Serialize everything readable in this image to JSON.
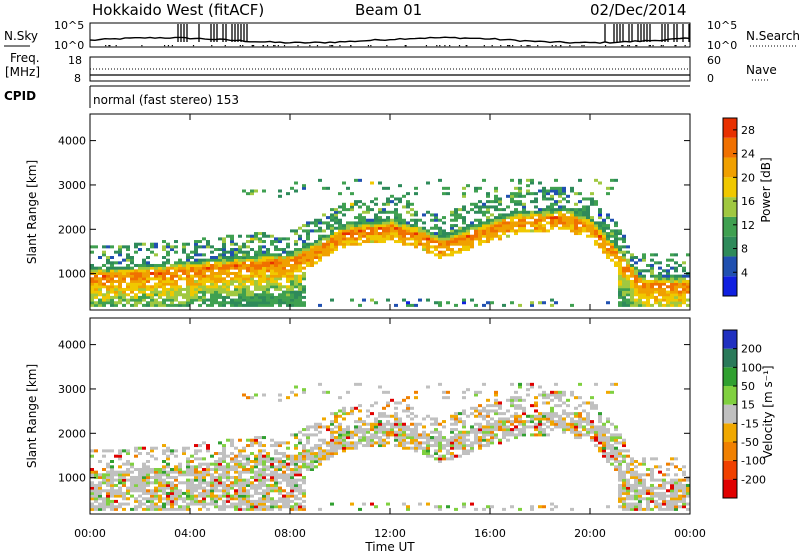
{
  "header": {
    "title": "Hokkaido West (fitACF)",
    "beam": "Beam 01",
    "date": "02/Dec/2014"
  },
  "strip_labels": {
    "nsky": "N.Sky",
    "nsearch": "N.Search",
    "freq_top": "Freq.",
    "freq_unit": "[MHz]",
    "nave": "Nave",
    "cpid": "CPID"
  },
  "noise_panel": {
    "left_ticks": [
      "10^5",
      "10^0"
    ],
    "right_ticks": [
      "10^5",
      "10^0"
    ]
  },
  "freq_panel": {
    "left_ticks": [
      "18",
      "8"
    ],
    "right_ticks": [
      "60",
      "0"
    ]
  },
  "cpid_text": "normal (fast stereo) 153",
  "chart_data": [
    {
      "type": "heatmap",
      "panel": "power",
      "ylabel": "Slant Range [km]",
      "y_ticks": [
        "1000",
        "2000",
        "3000",
        "4000"
      ],
      "ylim": [
        180,
        4600
      ],
      "colorbar": {
        "label": "Power [dB]",
        "ticks": [
          "4",
          "8",
          "12",
          "16",
          "20",
          "24",
          "28"
        ],
        "range": [
          0,
          30
        ]
      },
      "scatter_band": {
        "x_hours": [
          0,
          1,
          2,
          3,
          4,
          5,
          6,
          7,
          8,
          9,
          10,
          11,
          12,
          13,
          14,
          15,
          16,
          17,
          18,
          19,
          20,
          21,
          22,
          23,
          24
        ],
        "center_km": [
          900,
          900,
          950,
          1000,
          1050,
          1100,
          1150,
          1200,
          1250,
          1500,
          1850,
          1950,
          2000,
          1850,
          1600,
          1800,
          2000,
          2150,
          2200,
          2250,
          2000,
          1400,
          700,
          700,
          700
        ]
      }
    },
    {
      "type": "heatmap",
      "panel": "velocity",
      "ylabel": "Slant Range [km]",
      "y_ticks": [
        "1000",
        "2000",
        "3000",
        "4000"
      ],
      "ylim": [
        180,
        4600
      ],
      "colorbar": {
        "label": "Velocity [m s⁻¹]",
        "ticks": [
          "200",
          "100",
          "50",
          "15",
          "-15",
          "-50",
          "-100",
          "-200"
        ],
        "range": [
          -250,
          250
        ]
      }
    }
  ],
  "time_axis": {
    "label": "Time UT",
    "ticks": [
      "00:00",
      "04:00",
      "08:00",
      "12:00",
      "16:00",
      "20:00",
      "00:00"
    ],
    "x_hours": [
      0,
      4,
      8,
      12,
      16,
      20,
      24
    ]
  }
}
